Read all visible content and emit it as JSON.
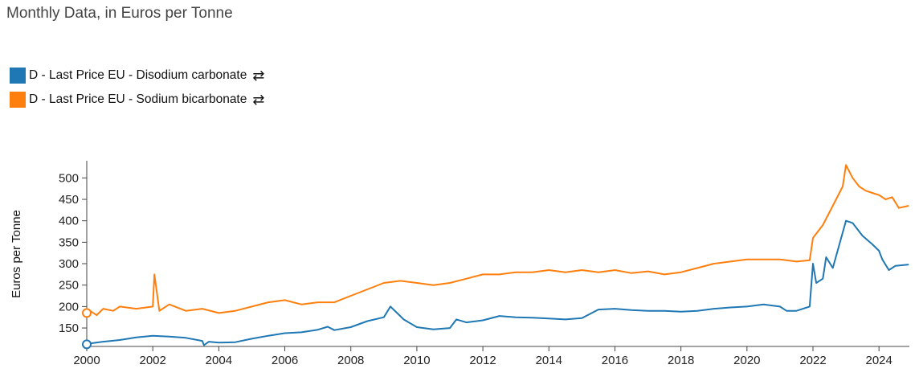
{
  "subtitle": "Monthly Data, in Euros per Tonne",
  "legend": [
    {
      "label": "D - Last Price EU - Disodium carbonate",
      "color": "#1f77b4",
      "icon": "swap-arrows-icon"
    },
    {
      "label": "D - Last Price EU - Sodium bicarbonate",
      "color": "#ff7f0e",
      "icon": "swap-arrows-icon"
    }
  ],
  "chart_data": {
    "type": "line",
    "ylabel": "Euros per Tonne",
    "xlabel": "",
    "xlim": [
      2000,
      2024.92
    ],
    "ylim": [
      107,
      540
    ],
    "x_ticks": [
      "2000",
      "2002",
      "2004",
      "2006",
      "2008",
      "2010",
      "2012",
      "2014",
      "2016",
      "2018",
      "2020",
      "2022",
      "2024"
    ],
    "y_ticks": [
      150,
      200,
      250,
      300,
      350,
      400,
      450,
      500
    ],
    "grid": false,
    "legend_position": "top-left",
    "series": [
      {
        "name": "D - Last Price EU - Disodium carbonate",
        "color": "#1f77b4",
        "x": [
          2000.0,
          2000.2,
          2000.5,
          2001.0,
          2001.5,
          2002.0,
          2002.5,
          2003.0,
          2003.5,
          2003.55,
          2003.7,
          2004.0,
          2004.5,
          2005.0,
          2005.5,
          2006.0,
          2006.5,
          2007.0,
          2007.3,
          2007.5,
          2008.0,
          2008.5,
          2009.0,
          2009.2,
          2009.4,
          2009.6,
          2010.0,
          2010.5,
          2011.0,
          2011.2,
          2011.5,
          2012.0,
          2012.5,
          2013.0,
          2013.5,
          2014.0,
          2014.5,
          2015.0,
          2015.5,
          2016.0,
          2016.5,
          2017.0,
          2017.5,
          2018.0,
          2018.5,
          2019.0,
          2019.5,
          2020.0,
          2020.5,
          2021.0,
          2021.2,
          2021.5,
          2021.9,
          2022.0,
          2022.1,
          2022.3,
          2022.4,
          2022.6,
          2022.8,
          2023.0,
          2023.2,
          2023.5,
          2023.8,
          2024.0,
          2024.1,
          2024.3,
          2024.5,
          2024.9
        ],
        "y": [
          112,
          115,
          118,
          122,
          128,
          132,
          130,
          127,
          120,
          110,
          118,
          116,
          117,
          125,
          132,
          138,
          140,
          146,
          153,
          145,
          152,
          166,
          175,
          200,
          185,
          170,
          152,
          147,
          150,
          170,
          163,
          168,
          178,
          175,
          174,
          172,
          170,
          173,
          193,
          195,
          192,
          190,
          190,
          188,
          190,
          195,
          198,
          200,
          205,
          200,
          190,
          190,
          200,
          300,
          255,
          265,
          315,
          290,
          345,
          400,
          395,
          365,
          345,
          330,
          310,
          285,
          295,
          298
        ]
      },
      {
        "name": "D - Last Price EU - Sodium bicarbonate",
        "color": "#ff7f0e",
        "x": [
          2000.0,
          2000.1,
          2000.3,
          2000.5,
          2000.8,
          2001.0,
          2001.5,
          2002.0,
          2002.05,
          2002.2,
          2002.5,
          2003.0,
          2003.5,
          2004.0,
          2004.5,
          2005.0,
          2005.5,
          2006.0,
          2006.5,
          2007.0,
          2007.5,
          2008.0,
          2008.5,
          2009.0,
          2009.5,
          2010.0,
          2010.5,
          2011.0,
          2011.5,
          2012.0,
          2012.5,
          2013.0,
          2013.5,
          2014.0,
          2014.5,
          2015.0,
          2015.5,
          2016.0,
          2016.5,
          2017.0,
          2017.5,
          2018.0,
          2018.5,
          2019.0,
          2019.5,
          2020.0,
          2020.5,
          2021.0,
          2021.5,
          2021.9,
          2022.0,
          2022.3,
          2022.5,
          2022.7,
          2022.9,
          2023.0,
          2023.2,
          2023.4,
          2023.6,
          2023.8,
          2024.0,
          2024.2,
          2024.4,
          2024.6,
          2024.9
        ],
        "y": [
          185,
          190,
          180,
          195,
          190,
          200,
          195,
          200,
          275,
          190,
          205,
          190,
          195,
          185,
          190,
          200,
          210,
          215,
          205,
          210,
          210,
          225,
          240,
          255,
          260,
          255,
          250,
          255,
          265,
          275,
          275,
          280,
          280,
          285,
          280,
          285,
          280,
          285,
          278,
          282,
          275,
          280,
          290,
          300,
          305,
          310,
          310,
          310,
          305,
          308,
          360,
          390,
          420,
          450,
          480,
          530,
          500,
          480,
          470,
          465,
          460,
          450,
          455,
          430,
          435
        ]
      }
    ]
  }
}
